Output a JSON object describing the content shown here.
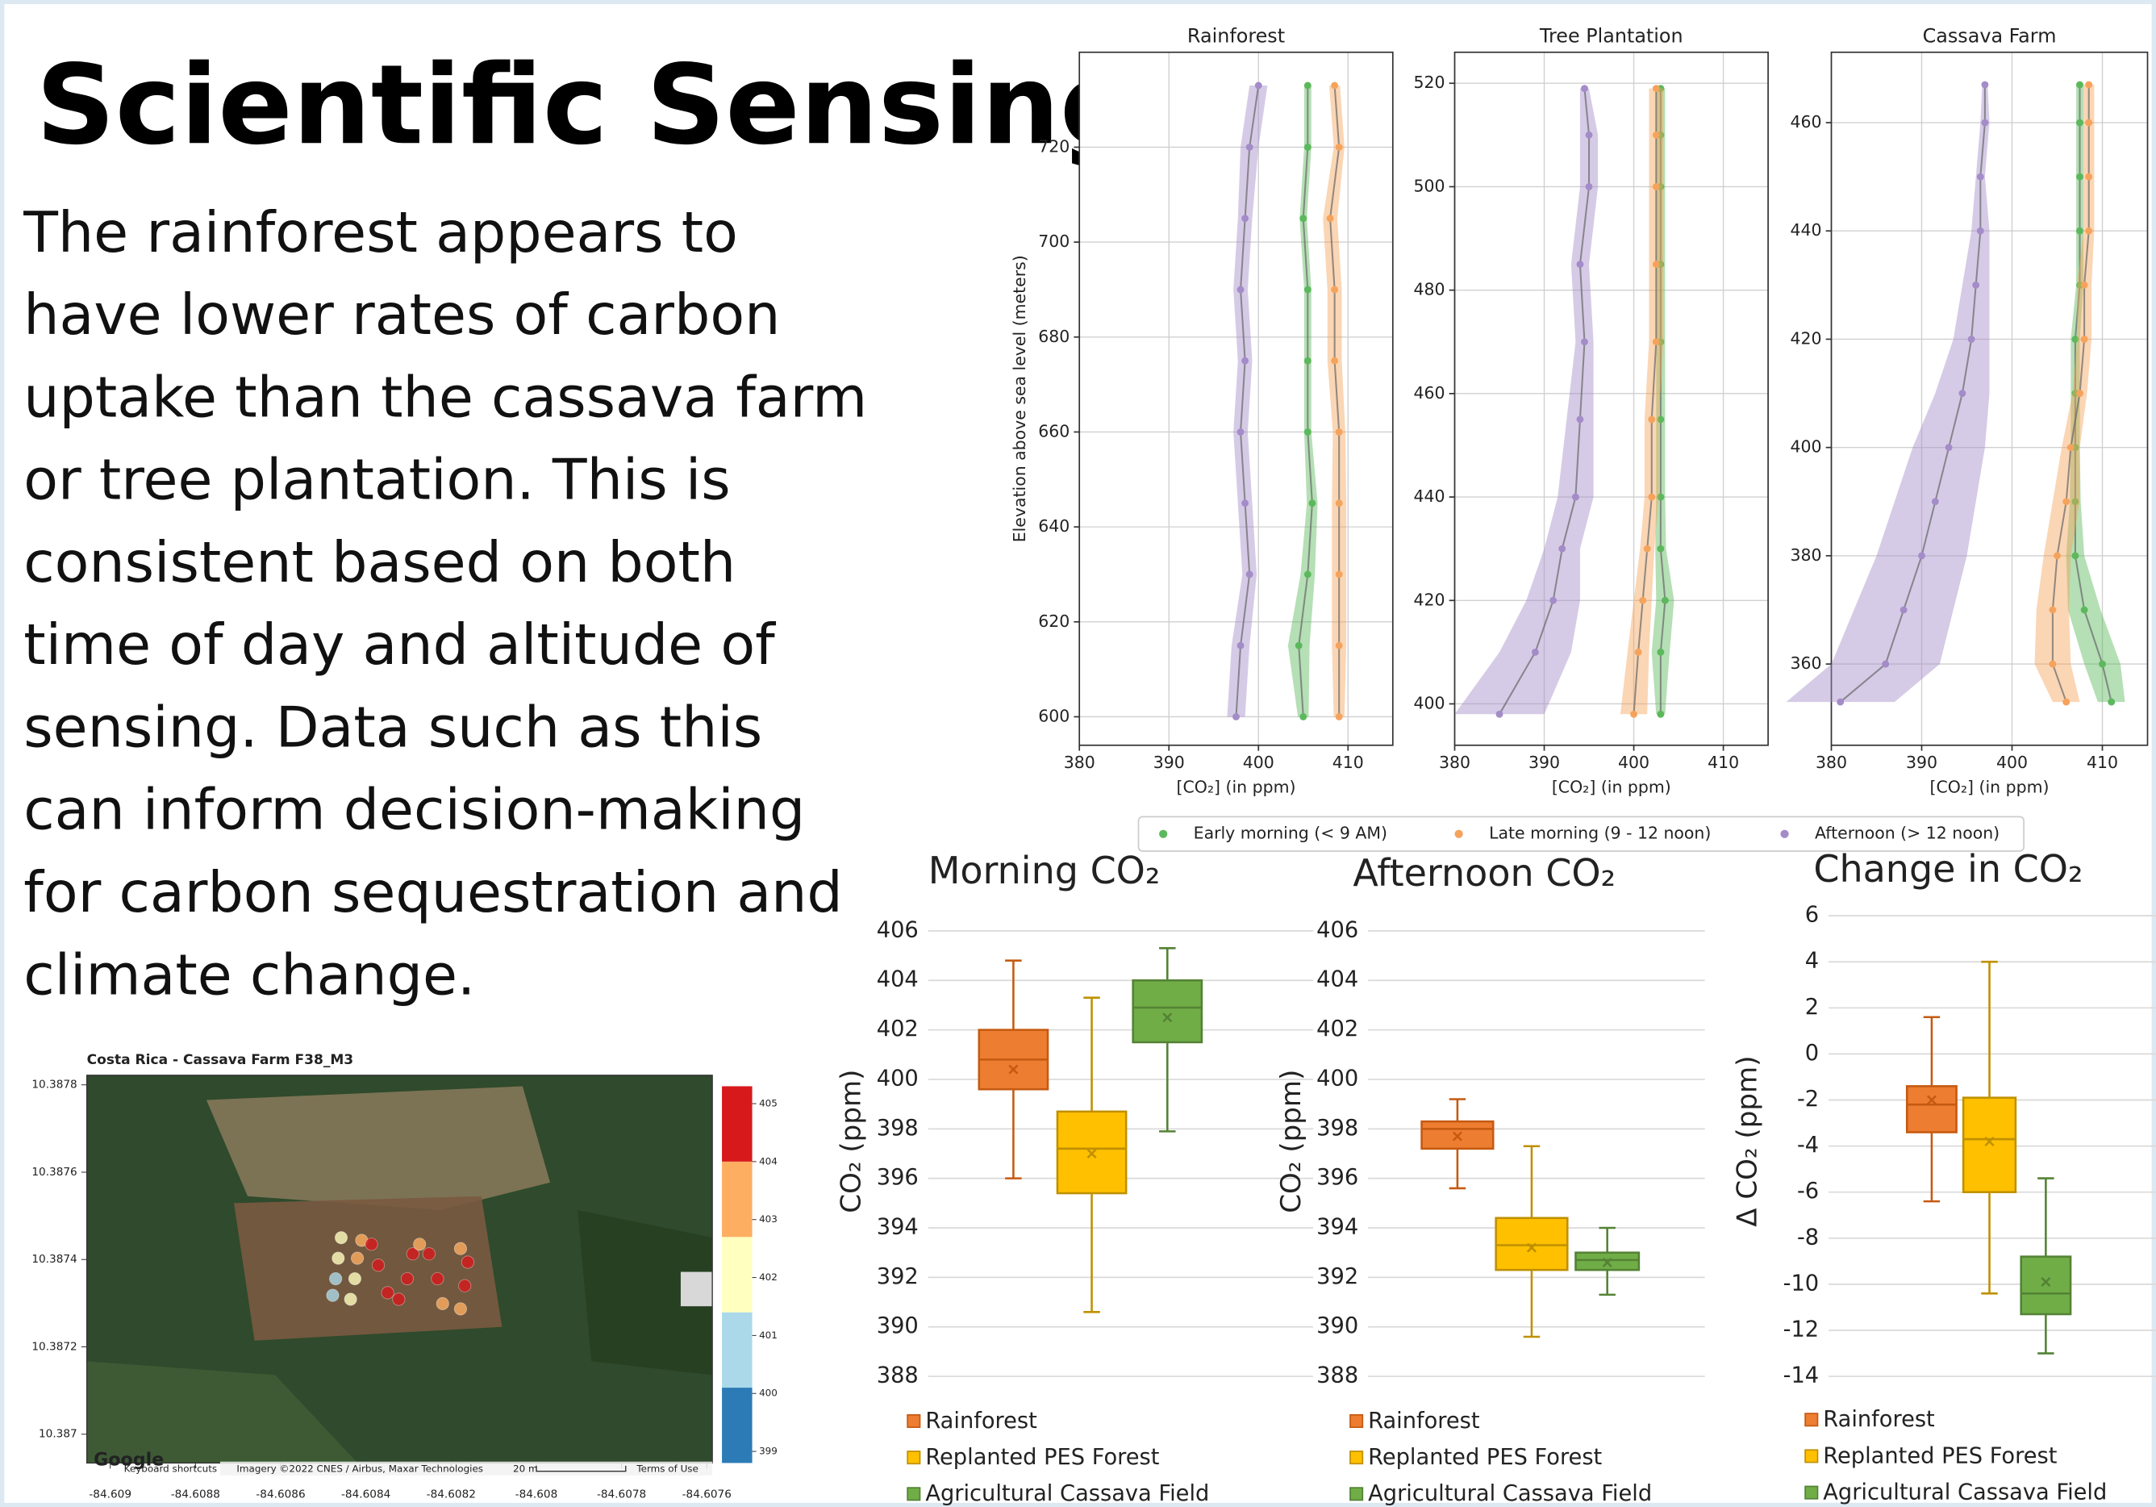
{
  "title": "Scientific Sensing",
  "body": [
    "The rainforest appears to",
    "have lower rates of carbon",
    "uptake than the cassava farm",
    "or tree plantation. This is",
    "consistent based on both",
    "time of day and altitude of",
    "sensing. Data such as this",
    "can inform decision-making",
    "for carbon sequestration and",
    "climate change."
  ],
  "chart_data": [
    {
      "type": "profile",
      "ylabel": "Elevation above sea level (meters)",
      "xlabel": "[CO₂] (in ppm)",
      "series": [
        {
          "name": "Early morning (< 9 AM)",
          "color": "#5cb85c"
        },
        {
          "name": "Late morning (9 - 12 noon)",
          "color": "#f5a35c"
        },
        {
          "name": "Afternoon (> 12 noon)",
          "color": "#a38cc8"
        }
      ],
      "panels": [
        {
          "title": "Rainforest",
          "xlim": [
            380,
            415
          ],
          "xticks": [
            380,
            390,
            400,
            410
          ],
          "ylim": [
            594,
            740
          ],
          "yticks": [
            600,
            620,
            640,
            660,
            680,
            700,
            720
          ],
          "elevations": [
            600,
            615,
            630,
            645,
            660,
            675,
            690,
            705,
            720,
            733
          ],
          "values": [
            [
              405,
              404.5,
              405.5,
              406,
              405.5,
              405.5,
              405.5,
              405,
              405.5,
              405.5
            ],
            [
              409,
              409,
              409,
              409,
              409,
              408.5,
              408.5,
              408,
              409,
              408.5
            ],
            [
              397.5,
              398,
              399,
              398.5,
              398,
              398.5,
              398,
              398.5,
              399,
              400
            ]
          ],
          "spread": [
            [
              0.6,
              1.2,
              0.8,
              0.6,
              0.4,
              0.4,
              0.4,
              0.4,
              0.4,
              0.4
            ],
            [
              0.6,
              0.8,
              0.8,
              0.8,
              0.7,
              0.8,
              0.8,
              0.8,
              0.6,
              0.6
            ],
            [
              1,
              1,
              0.8,
              0.8,
              0.8,
              0.8,
              0.8,
              0.8,
              1,
              1
            ]
          ]
        },
        {
          "title": "Tree Plantation",
          "xlim": [
            380,
            415
          ],
          "xticks": [
            380,
            390,
            400,
            410
          ],
          "ylim": [
            392,
            526
          ],
          "yticks": [
            400,
            420,
            440,
            460,
            480,
            500,
            520
          ],
          "elevations": [
            398,
            410,
            420,
            430,
            440,
            455,
            470,
            485,
            500,
            510,
            519
          ],
          "values": [
            [
              403,
              403,
              403.5,
              403,
              403,
              403,
              403,
              403,
              403,
              403,
              403
            ],
            [
              400,
              400.5,
              401,
              401.5,
              402,
              402,
              402.5,
              402.5,
              402.5,
              402.5,
              402.5
            ],
            [
              385,
              389,
              391,
              392,
              393.5,
              394,
              394.5,
              394,
              395,
              395,
              394.5
            ]
          ],
          "spread": [
            [
              0.5,
              1,
              1,
              0.6,
              0.5,
              0.5,
              0.5,
              0.5,
              0.5,
              0.5,
              0.5
            ],
            [
              1.5,
              1.2,
              1,
              0.8,
              0.8,
              0.8,
              0.8,
              0.8,
              0.8,
              0.8,
              0.8
            ],
            [
              5,
              4,
              3,
              2,
              2,
              1.5,
              1,
              1,
              1,
              1,
              0.5
            ]
          ]
        },
        {
          "title": "Cassava Farm",
          "xlim": [
            380,
            415
          ],
          "xticks": [
            380,
            390,
            400,
            410
          ],
          "ylim": [
            345,
            473
          ],
          "yticks": [
            360,
            380,
            400,
            420,
            440,
            460
          ],
          "elevations": [
            353,
            360,
            370,
            380,
            390,
            400,
            410,
            420,
            430,
            440,
            450,
            460,
            467
          ],
          "values": [
            [
              411,
              410,
              408,
              407,
              407,
              407,
              407,
              407,
              407.5,
              407.5,
              407.5,
              407.5,
              407.5
            ],
            [
              406,
              404.5,
              404.5,
              405,
              406,
              406.5,
              407.5,
              408,
              408,
              408.5,
              408.5,
              408.5,
              408.5
            ],
            [
              381,
              386,
              388,
              390,
              391.5,
              393,
              394.5,
              395.5,
              396,
              396.5,
              396.5,
              397,
              397
            ]
          ],
          "spread": [
            [
              1.5,
              2,
              1.8,
              1,
              0.6,
              0.5,
              0.5,
              0.5,
              0.4,
              0.4,
              0.4,
              0.4,
              0.4
            ],
            [
              1.5,
              2,
              1.8,
              1.5,
              1.5,
              1,
              0.8,
              0.8,
              0.8,
              0.6,
              0.6,
              0.6,
              0.6
            ],
            [
              6,
              6,
              5.5,
              5,
              4.5,
              4,
              3,
              2,
              1.5,
              1,
              0.5,
              0.5,
              0.3
            ]
          ]
        }
      ]
    },
    {
      "type": "box",
      "title": "Morning CO₂",
      "ylabel": "CO₂ (ppm)",
      "categories": [
        "Rainforest",
        "Replanted PES Forest",
        "Agricultural Cassava Field"
      ],
      "colors": [
        "#ed7d31",
        "#ffc000",
        "#70ad47"
      ],
      "edge_colors": [
        "#c55a11",
        "#bf9000",
        "#548235"
      ],
      "ylim": [
        388,
        406
      ],
      "yticks": [
        388,
        390,
        392,
        394,
        396,
        398,
        400,
        402,
        404,
        406
      ],
      "grid": true,
      "boxes": [
        {
          "min": 396,
          "q1": 399.6,
          "median": 400.8,
          "q3": 402,
          "max": 404.8,
          "mean": 400.4
        },
        {
          "min": 390.6,
          "q1": 395.4,
          "median": 397.2,
          "q3": 398.7,
          "max": 403.3,
          "mean": 397
        },
        {
          "min": 397.9,
          "q1": 401.5,
          "median": 402.9,
          "q3": 404,
          "max": 405.3,
          "mean": 402.5
        }
      ]
    },
    {
      "type": "box",
      "title": "Afternoon CO₂",
      "ylabel": "CO₂ (ppm)",
      "categories": [
        "Rainforest",
        "Replanted PES Forest",
        "Agricultural Cassava Field"
      ],
      "colors": [
        "#ed7d31",
        "#ffc000",
        "#70ad47"
      ],
      "edge_colors": [
        "#c55a11",
        "#bf9000",
        "#548235"
      ],
      "ylim": [
        388,
        406
      ],
      "yticks": [
        388,
        390,
        392,
        394,
        396,
        398,
        400,
        402,
        404,
        406
      ],
      "grid": true,
      "boxes": [
        {
          "min": 395.6,
          "q1": 397.2,
          "median": 398,
          "q3": 398.3,
          "max": 399.2,
          "mean": 397.7
        },
        {
          "min": 389.6,
          "q1": 392.3,
          "median": 393.3,
          "q3": 394.4,
          "max": 397.3,
          "mean": 393.2
        },
        {
          "min": 391.3,
          "q1": 392.3,
          "median": 392.7,
          "q3": 393,
          "max": 394,
          "mean": 392.6
        }
      ]
    },
    {
      "type": "box",
      "title": "Change in CO₂",
      "ylabel": "Δ CO₂ (ppm)",
      "categories": [
        "Rainforest",
        "Replanted PES Forest",
        "Agricultural Cassava Field"
      ],
      "colors": [
        "#ed7d31",
        "#ffc000",
        "#70ad47"
      ],
      "edge_colors": [
        "#c55a11",
        "#bf9000",
        "#548235"
      ],
      "ylim": [
        -14,
        6
      ],
      "yticks": [
        -14,
        -12,
        -10,
        -8,
        -6,
        -4,
        -2,
        0,
        2,
        4,
        6
      ],
      "grid": true,
      "boxes": [
        {
          "min": -6.4,
          "q1": -3.4,
          "median": -2.2,
          "q3": -1.4,
          "max": 1.6,
          "mean": -2
        },
        {
          "min": -10.4,
          "q1": -6,
          "median": -3.7,
          "q3": -1.9,
          "max": 4,
          "mean": -3.8
        },
        {
          "min": -13,
          "q1": -11.3,
          "median": -10.4,
          "q3": -8.8,
          "max": -5.4,
          "mean": -9.9
        }
      ]
    },
    {
      "type": "map",
      "title": "Costa Rica - Cassava Farm F38_M3",
      "xlim": [
        -84.609055,
        -84.607587
      ],
      "xticks": [
        -84.609,
        -84.6088,
        -84.6086,
        -84.6084,
        -84.6082,
        -84.608,
        -84.6078,
        -84.6076
      ],
      "ylim": [
        10.386934,
        10.387822
      ],
      "yticks": [
        10.387,
        10.3872,
        10.3874,
        10.3876,
        10.3878
      ],
      "x": [
        -84.608458,
        -84.608465,
        -84.608471,
        -84.608478,
        -84.608436,
        -84.608426,
        -84.60842,
        -84.60841,
        -84.608387,
        -84.608371,
        -84.608349,
        -84.608323,
        -84.608303,
        -84.60829,
        -84.608274,
        -84.608252,
        -84.608232,
        -84.60822,
        -84.608178,
        -84.608168,
        -84.608161,
        -84.608178
      ],
      "y": [
        10.38745,
        10.387403,
        10.387356,
        10.387318,
        10.387309,
        10.387356,
        10.387403,
        10.387444,
        10.387435,
        10.387387,
        10.387324,
        10.387309,
        10.387356,
        10.387413,
        10.387435,
        10.387413,
        10.387356,
        10.387299,
        10.387287,
        10.38734,
        10.387394,
        10.387425
      ],
      "values": [
        402.5,
        402,
        401,
        400.5,
        401.5,
        402,
        403,
        403.5,
        404.5,
        405,
        405,
        404.5,
        405,
        404.5,
        403.5,
        404.5,
        405,
        403.5,
        404,
        405,
        405,
        403.5
      ],
      "colorbar": {
        "bounds": [
          398.8,
          400.1,
          401.4,
          402.7,
          404,
          405.3
        ],
        "colors": [
          "#2c7bb6",
          "#abd9e9",
          "#ffffbf",
          "#fdae61",
          "#d7191c"
        ],
        "ticks": [
          399,
          400,
          401,
          402,
          403,
          404,
          405
        ]
      },
      "attribution": [
        "Google",
        "Keyboard shortcuts",
        "Imagery ©2022 CNES / Airbus, Maxar Technologies",
        "20 m",
        "Terms of Use"
      ]
    }
  ]
}
